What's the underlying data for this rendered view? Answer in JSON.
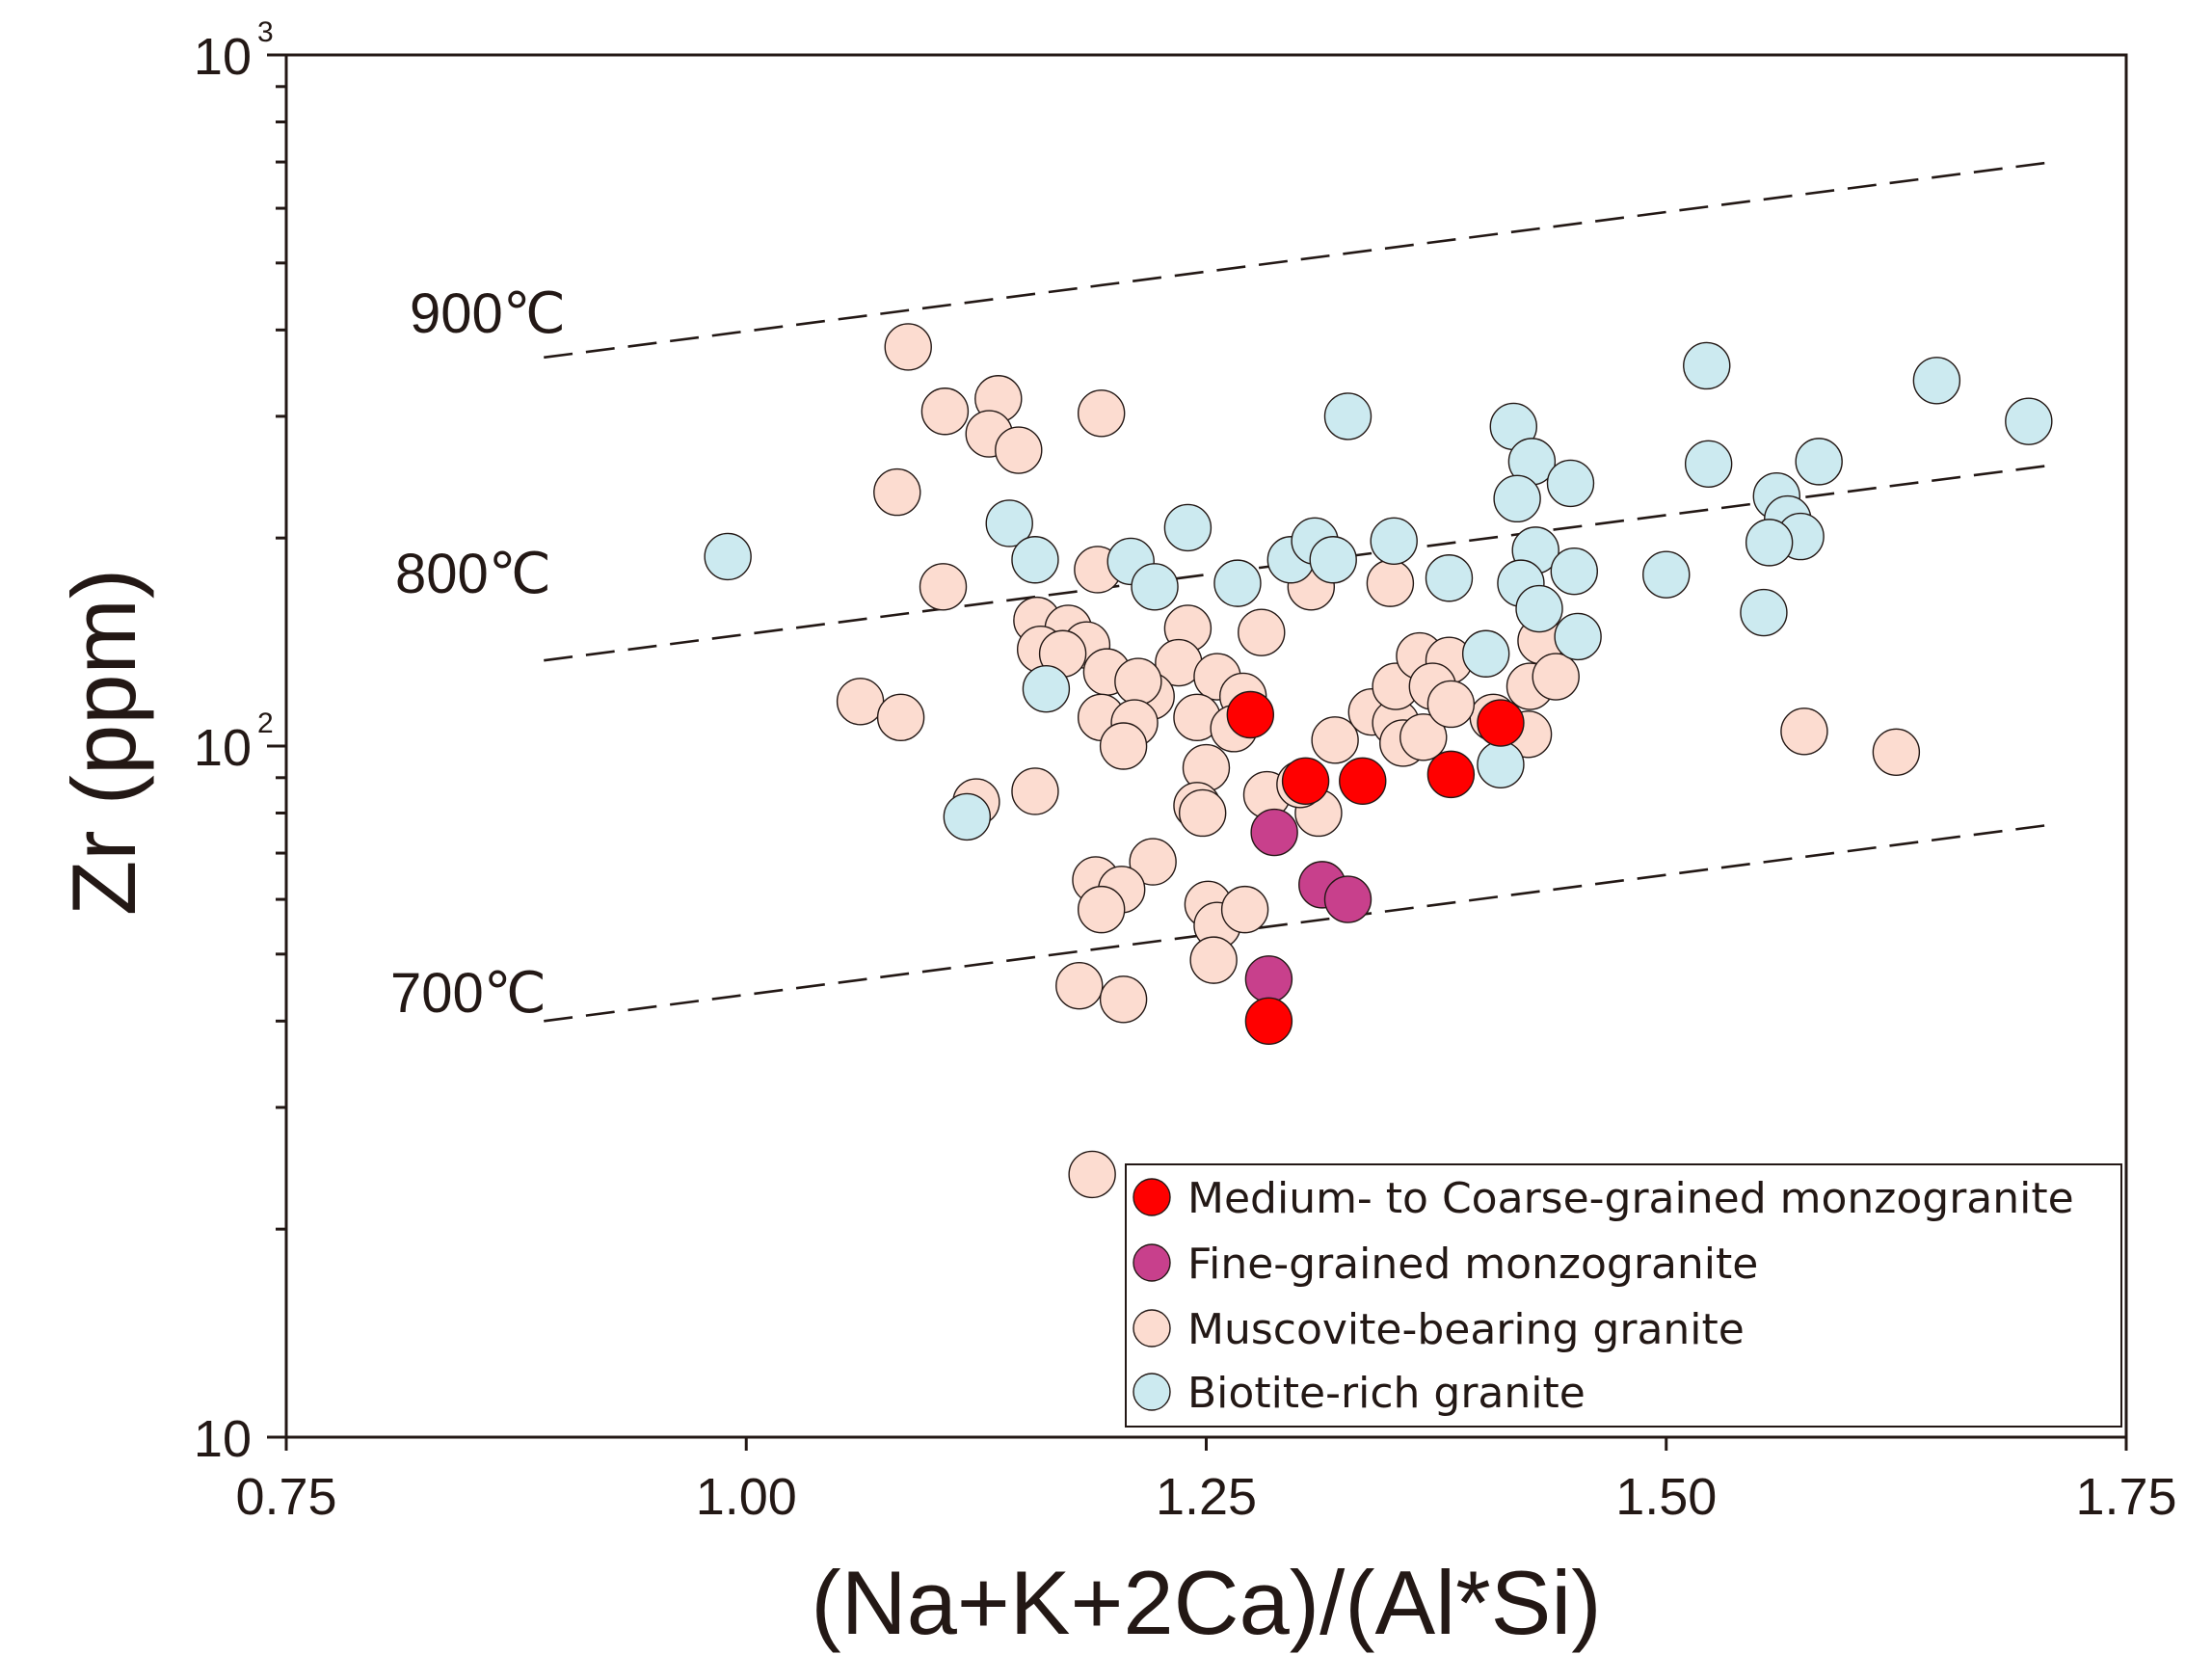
{
  "chart_data": {
    "type": "scatter",
    "title": "",
    "xlabel": "(Na+K+2Ca)/(Al*Si)",
    "ylabel": "Zr (ppm)",
    "xlim": [
      0.75,
      1.75
    ],
    "ylim": [
      10,
      1000
    ],
    "yscale": "log",
    "xticks": [
      "0.75",
      "1.00",
      "1.25",
      "1.50",
      "1.75"
    ],
    "yticks": [
      {
        "base": "10",
        "exp": ""
      },
      {
        "base": "10",
        "exp": "2"
      },
      {
        "base": "10",
        "exp": "3"
      }
    ],
    "isotherms": [
      {
        "label": "900℃",
        "x": [
          0.89,
          1.71
        ],
        "y": [
          365,
          700
        ]
      },
      {
        "label": "800℃",
        "x": [
          0.89,
          1.71
        ],
        "y": [
          133,
          255
        ]
      },
      {
        "label": "700℃",
        "x": [
          0.89,
          1.71
        ],
        "y": [
          40,
          77
        ]
      }
    ],
    "legend_position": "bottom-right",
    "series": [
      {
        "name": "Medium- to Coarse-grained monzogranite",
        "color": "#ff0000",
        "points": [
          [
            1.274,
            111
          ],
          [
            1.304,
            89
          ],
          [
            1.335,
            89
          ],
          [
            1.383,
            91
          ],
          [
            1.41,
            108
          ],
          [
            1.284,
            40
          ]
        ]
      },
      {
        "name": "Fine-grained monzogranite",
        "color": "#c8408c",
        "points": [
          [
            1.287,
            75
          ],
          [
            1.313,
            63
          ],
          [
            1.327,
            60
          ],
          [
            1.284,
            46
          ]
        ]
      },
      {
        "name": "Muscovite-bearing granite",
        "color": "#fcdcd0",
        "points": [
          [
            1.088,
            378
          ],
          [
            1.137,
            318
          ],
          [
            1.108,
            305
          ],
          [
            1.193,
            303
          ],
          [
            1.132,
            283
          ],
          [
            1.148,
            268
          ],
          [
            1.082,
            233
          ],
          [
            1.107,
            170
          ],
          [
            1.191,
            180
          ],
          [
            1.24,
            148
          ],
          [
            1.28,
            146
          ],
          [
            1.307,
            170
          ],
          [
            1.35,
            172
          ],
          [
            1.158,
            152
          ],
          [
            1.175,
            148
          ],
          [
            1.16,
            138
          ],
          [
            1.185,
            140
          ],
          [
            1.172,
            136
          ],
          [
            1.196,
            128
          ],
          [
            1.235,
            132
          ],
          [
            1.256,
            126
          ],
          [
            1.22,
            118
          ],
          [
            1.27,
            118
          ],
          [
            1.213,
            124
          ],
          [
            1.062,
            116
          ],
          [
            1.084,
            110
          ],
          [
            1.193,
            110
          ],
          [
            1.211,
            108
          ],
          [
            1.245,
            110
          ],
          [
            1.265,
            106
          ],
          [
            1.205,
            100
          ],
          [
            1.25,
            93
          ],
          [
            1.157,
            86
          ],
          [
            1.125,
            83
          ],
          [
            1.245,
            82
          ],
          [
            1.248,
            80
          ],
          [
            1.283,
            85
          ],
          [
            1.311,
            80
          ],
          [
            1.301,
            88
          ],
          [
            1.32,
            102
          ],
          [
            1.34,
            112
          ],
          [
            1.353,
            108
          ],
          [
            1.357,
            101
          ],
          [
            1.368,
            103
          ],
          [
            1.353,
            122
          ],
          [
            1.366,
            135
          ],
          [
            1.382,
            133
          ],
          [
            1.432,
            142
          ],
          [
            1.426,
            122
          ],
          [
            1.44,
            126
          ],
          [
            1.406,
            110
          ],
          [
            1.425,
            104
          ],
          [
            1.373,
            122
          ],
          [
            1.383,
            115
          ],
          [
            1.575,
            105
          ],
          [
            1.625,
            98
          ],
          [
            1.221,
            68
          ],
          [
            1.19,
            64
          ],
          [
            1.204,
            62
          ],
          [
            1.193,
            58
          ],
          [
            1.251,
            59
          ],
          [
            1.256,
            55
          ],
          [
            1.271,
            58
          ],
          [
            1.254,
            49
          ],
          [
            1.181,
            45
          ],
          [
            1.205,
            43
          ],
          [
            1.188,
            24
          ]
        ]
      },
      {
        "name": "Biotite-rich granite",
        "color": "#cceaf0",
        "points": [
          [
            0.99,
            188
          ],
          [
            1.143,
            210
          ],
          [
            1.157,
            186
          ],
          [
            1.163,
            121
          ],
          [
            1.12,
            79
          ],
          [
            1.209,
            185
          ],
          [
            1.222,
            170
          ],
          [
            1.24,
            207
          ],
          [
            1.267,
            172
          ],
          [
            1.296,
            186
          ],
          [
            1.309,
            198
          ],
          [
            1.319,
            186
          ],
          [
            1.327,
            300
          ],
          [
            1.352,
            198
          ],
          [
            1.382,
            175
          ],
          [
            1.402,
            136
          ],
          [
            1.41,
            94
          ],
          [
            1.417,
            290
          ],
          [
            1.427,
            258
          ],
          [
            1.419,
            228
          ],
          [
            1.429,
            192
          ],
          [
            1.421,
            172
          ],
          [
            1.431,
            158
          ],
          [
            1.448,
            240
          ],
          [
            1.45,
            179
          ],
          [
            1.452,
            144
          ],
          [
            1.5,
            177
          ],
          [
            1.522,
            355
          ],
          [
            1.523,
            256
          ],
          [
            1.56,
            230
          ],
          [
            1.566,
            213
          ],
          [
            1.573,
            201
          ],
          [
            1.556,
            197
          ],
          [
            1.553,
            156
          ],
          [
            1.583,
            258
          ],
          [
            1.647,
            338
          ],
          [
            1.697,
            295
          ]
        ]
      }
    ]
  }
}
